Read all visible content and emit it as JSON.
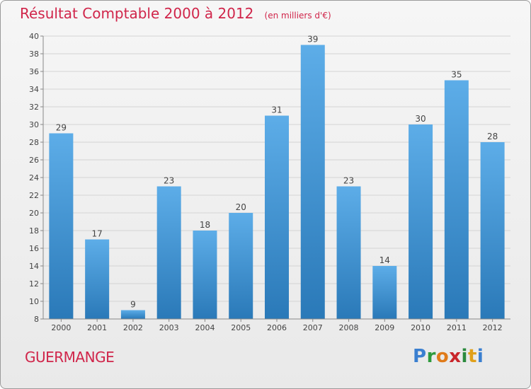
{
  "header": {
    "title": "Résultat Comptable 2000 à 2012",
    "subtitle": "(en milliers d'€)"
  },
  "footer": {
    "commune": "GUERMANGE",
    "logo_letters": [
      "P",
      "r",
      "o",
      "x",
      "i",
      "t",
      "i"
    ],
    "logo_colors": [
      "#3a7fd0",
      "#2e9a3c",
      "#e07b1a",
      "#c9262b",
      "#2b8a3e",
      "#e0a01a",
      "#3a7fd0"
    ]
  },
  "chart_data": {
    "type": "bar",
    "title": "Résultat Comptable 2000 à 2012",
    "xlabel": "",
    "ylabel": "",
    "categories": [
      "2000",
      "2001",
      "2002",
      "2003",
      "2004",
      "2005",
      "2006",
      "2007",
      "2008",
      "2009",
      "2010",
      "2011",
      "2012"
    ],
    "values": [
      29,
      17,
      9,
      23,
      18,
      20,
      31,
      39,
      23,
      14,
      30,
      35,
      28
    ],
    "ylim": [
      8,
      40
    ],
    "yticks": [
      8,
      10,
      12,
      14,
      16,
      18,
      20,
      22,
      24,
      26,
      28,
      30,
      32,
      34,
      36,
      38,
      40
    ],
    "grid": true,
    "colors": {
      "bar_light": "#5dade8",
      "bar_dark": "#2a79b8",
      "grid": "#d4d4d4",
      "axis": "#888888",
      "text": "#444444"
    }
  }
}
